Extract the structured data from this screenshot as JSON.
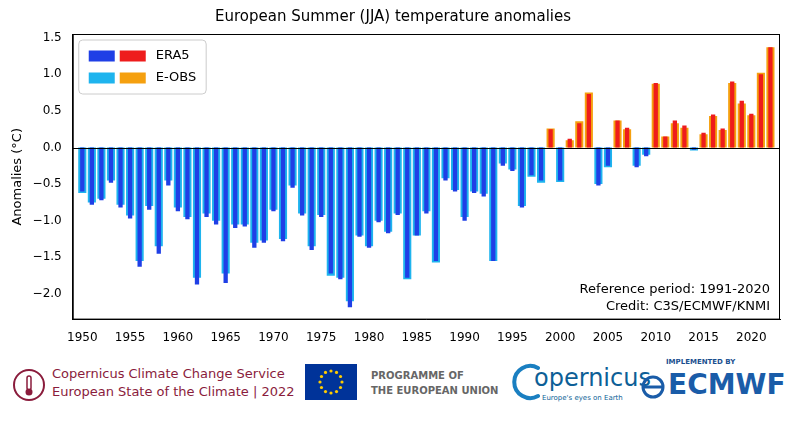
{
  "chart_data": {
    "type": "bar",
    "title": "European Summer (JJA) temperature anomalies",
    "y_label": "Anomalies (°C)",
    "x": [
      1950,
      1951,
      1952,
      1953,
      1954,
      1955,
      1956,
      1957,
      1958,
      1959,
      1960,
      1961,
      1962,
      1963,
      1964,
      1965,
      1966,
      1967,
      1968,
      1969,
      1970,
      1971,
      1972,
      1973,
      1974,
      1975,
      1976,
      1977,
      1978,
      1979,
      1980,
      1981,
      1982,
      1983,
      1984,
      1985,
      1986,
      1987,
      1988,
      1989,
      1990,
      1991,
      1992,
      1993,
      1994,
      1995,
      1996,
      1997,
      1998,
      1999,
      2000,
      2001,
      2002,
      2003,
      2004,
      2005,
      2006,
      2007,
      2008,
      2009,
      2010,
      2011,
      2012,
      2013,
      2014,
      2015,
      2016,
      2017,
      2018,
      2019,
      2020,
      2021,
      2022
    ],
    "series": [
      {
        "name": "ERA5",
        "values": [
          -0.6,
          -0.78,
          -0.72,
          -0.48,
          -0.82,
          -0.97,
          -1.63,
          -0.85,
          -1.45,
          -0.52,
          -0.87,
          -0.98,
          -1.87,
          -0.95,
          -1.05,
          -1.85,
          -1.1,
          -1.08,
          -1.37,
          -1.3,
          -0.87,
          -1.28,
          -0.55,
          -0.93,
          -1.4,
          -0.95,
          -1.72,
          -1.8,
          -2.18,
          -1.22,
          -1.37,
          -1.02,
          -1.17,
          -0.92,
          -1.78,
          -1.2,
          -0.9,
          -1.55,
          -0.45,
          -0.6,
          -1.0,
          -0.62,
          -0.67,
          -1.55,
          -0.25,
          -0.32,
          -0.82,
          -0.38,
          -0.45,
          0.25,
          -0.45,
          0.12,
          0.33,
          0.73,
          -0.52,
          -0.25,
          0.37,
          0.27,
          -0.27,
          -0.12,
          0.88,
          0.15,
          0.37,
          0.3,
          -0.03,
          0.2,
          0.45,
          0.26,
          0.9,
          0.64,
          0.46,
          1.0,
          1.37
        ],
        "colors": [
          "#1f3fe6",
          "#1f3fe6",
          "#1f3fe6",
          "#1f3fe6",
          "#1f3fe6",
          "#1f3fe6",
          "#1f3fe6",
          "#1f3fe6",
          "#1f3fe6",
          "#1f3fe6",
          "#1f3fe6",
          "#1f3fe6",
          "#1f3fe6",
          "#1f3fe6",
          "#1f3fe6",
          "#1f3fe6",
          "#1f3fe6",
          "#1f3fe6",
          "#1f3fe6",
          "#1f3fe6",
          "#1f3fe6",
          "#1f3fe6",
          "#1f3fe6",
          "#1f3fe6",
          "#1f3fe6",
          "#1f3fe6",
          "#1f3fe6",
          "#1f3fe6",
          "#1f3fe6",
          "#1f3fe6",
          "#1f3fe6",
          "#1f3fe6",
          "#1f3fe6",
          "#1f3fe6",
          "#1f3fe6",
          "#1f3fe6",
          "#1f3fe6",
          "#1f3fe6",
          "#1f3fe6",
          "#1f3fe6",
          "#1f3fe6",
          "#1f3fe6",
          "#1f3fe6",
          "#1f3fe6",
          "#1f3fe6",
          "#1f3fe6",
          "#1f3fe6",
          "#1f3fe6",
          "#1f3fe6",
          "#ee1c1c",
          "#1f3fe6",
          "#ee1c1c",
          "#ee1c1c",
          "#ee1c1c",
          "#1f3fe6",
          "#1f3fe6",
          "#ee1c1c",
          "#ee1c1c",
          "#1f3fe6",
          "#1f3fe6",
          "#ee1c1c",
          "#ee1c1c",
          "#ee1c1c",
          "#ee1c1c",
          "#1f3fe6",
          "#ee1c1c",
          "#ee1c1c",
          "#ee1c1c",
          "#ee1c1c",
          "#ee1c1c",
          "#ee1c1c",
          "#ee1c1c",
          "#ee1c1c"
        ]
      },
      {
        "name": "E-OBS",
        "values": [
          -0.62,
          -0.75,
          -0.7,
          -0.45,
          -0.78,
          -0.93,
          -1.55,
          -0.8,
          -1.35,
          -0.45,
          -0.82,
          -0.95,
          -1.78,
          -0.9,
          -1.0,
          -1.72,
          -1.05,
          -1.05,
          -1.3,
          -1.27,
          -0.85,
          -1.25,
          -0.52,
          -0.9,
          -1.35,
          -0.92,
          -1.75,
          -1.78,
          -2.1,
          -1.2,
          -1.35,
          -1.0,
          -1.15,
          -0.9,
          -1.8,
          -1.2,
          -0.87,
          -1.57,
          -0.42,
          -0.58,
          -0.95,
          -0.6,
          -0.63,
          -1.55,
          -0.22,
          -0.3,
          -0.8,
          -0.4,
          -0.48,
          0.26,
          -0.47,
          0.1,
          0.36,
          0.75,
          -0.5,
          -0.27,
          0.37,
          0.25,
          -0.25,
          -0.1,
          0.87,
          0.15,
          0.33,
          0.27,
          -0.04,
          0.18,
          0.43,
          0.24,
          0.88,
          0.6,
          0.44,
          1.02,
          1.37
        ],
        "colors": [
          "#1eb4ee",
          "#1eb4ee",
          "#1eb4ee",
          "#1eb4ee",
          "#1eb4ee",
          "#1eb4ee",
          "#1eb4ee",
          "#1eb4ee",
          "#1eb4ee",
          "#1eb4ee",
          "#1eb4ee",
          "#1eb4ee",
          "#1eb4ee",
          "#1eb4ee",
          "#1eb4ee",
          "#1eb4ee",
          "#1eb4ee",
          "#1eb4ee",
          "#1eb4ee",
          "#1eb4ee",
          "#1eb4ee",
          "#1eb4ee",
          "#1eb4ee",
          "#1eb4ee",
          "#1eb4ee",
          "#1eb4ee",
          "#1eb4ee",
          "#1eb4ee",
          "#1eb4ee",
          "#1eb4ee",
          "#1eb4ee",
          "#1eb4ee",
          "#1eb4ee",
          "#1eb4ee",
          "#1eb4ee",
          "#1eb4ee",
          "#1eb4ee",
          "#1eb4ee",
          "#1eb4ee",
          "#1eb4ee",
          "#1eb4ee",
          "#1eb4ee",
          "#1eb4ee",
          "#1eb4ee",
          "#1eb4ee",
          "#1eb4ee",
          "#1eb4ee",
          "#1eb4ee",
          "#1eb4ee",
          "#f5a00f",
          "#1eb4ee",
          "#f5a00f",
          "#f5a00f",
          "#f5a00f",
          "#1eb4ee",
          "#1eb4ee",
          "#f5a00f",
          "#f5a00f",
          "#1eb4ee",
          "#1eb4ee",
          "#f5a00f",
          "#f5a00f",
          "#f5a00f",
          "#f5a00f",
          "#1eb4ee",
          "#f5a00f",
          "#f5a00f",
          "#f5a00f",
          "#f5a00f",
          "#f5a00f",
          "#f5a00f",
          "#f5a00f",
          "#f5a00f"
        ]
      }
    ],
    "xlim": [
      1949,
      2023
    ],
    "xticks": [
      1950,
      1955,
      1960,
      1965,
      1970,
      1975,
      1980,
      1985,
      1990,
      1995,
      2000,
      2005,
      2010,
      2015,
      2020
    ],
    "ylim": [
      -2.35,
      1.55
    ],
    "yticks": [
      {
        "value": -2.0,
        "label": "−2.0"
      },
      {
        "value": -1.5,
        "label": "−1.5"
      },
      {
        "value": -1.0,
        "label": "−1.0"
      },
      {
        "value": -0.5,
        "label": "−0.5"
      },
      {
        "value": 0,
        "label": "0.0"
      },
      0.5,
      {
        "value": 1.0,
        "label": "1.0"
      },
      {
        "value": 1.5,
        "label": "1.5"
      }
    ],
    "grid": false,
    "legend": "upper left",
    "annotations": [
      "Reference period: 1991-2020",
      "Credit: C3S/ECMWF/KNMI"
    ]
  },
  "footer": {
    "c3s": [
      "Copernicus Climate Change Service",
      "European State of the Climate | 2022"
    ],
    "eu": [
      "PROGRAMME OF",
      "THE EUROPEAN UNION"
    ],
    "copernicus": [
      "opernicus",
      "Europe's eyes on Earth"
    ],
    "ecmwf": [
      "IMPLEMENTED BY",
      "ECMWF"
    ]
  }
}
